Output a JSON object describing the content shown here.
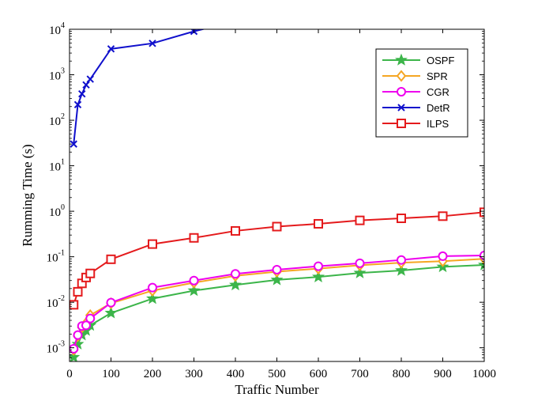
{
  "chart_data": {
    "type": "line",
    "xlabel": "Traffic Number",
    "ylabel": "Rumming Time (s)",
    "xlim": [
      0,
      1000
    ],
    "ylim": [
      0.0005,
      10000
    ],
    "yscale": "log",
    "grid": false,
    "legend_position": "top-right",
    "x_ticks": [
      "0",
      "100",
      "200",
      "300",
      "400",
      "500",
      "600",
      "700",
      "800",
      "900",
      "1000"
    ],
    "y_ticks": [
      {
        "base": "10",
        "exp": "-3"
      },
      {
        "base": "10",
        "exp": "-2"
      },
      {
        "base": "10",
        "exp": "-1"
      },
      {
        "base": "10",
        "exp": "0"
      },
      {
        "base": "10",
        "exp": "1"
      },
      {
        "base": "10",
        "exp": "2"
      },
      {
        "base": "10",
        "exp": "3"
      },
      {
        "base": "10",
        "exp": "4"
      }
    ],
    "series": [
      {
        "name": "OSPF",
        "color": "#3cb54a",
        "marker": "star",
        "x": [
          10,
          20,
          30,
          40,
          50,
          100,
          200,
          300,
          400,
          500,
          600,
          700,
          800,
          900,
          1000
        ],
        "y": [
          0.00062,
          0.0012,
          0.0019,
          0.0024,
          0.0031,
          0.0058,
          0.012,
          0.018,
          0.024,
          0.031,
          0.036,
          0.044,
          0.05,
          0.06,
          0.066
        ]
      },
      {
        "name": "SPR",
        "color": "#f5a623",
        "marker": "diamond",
        "x": [
          10,
          20,
          30,
          40,
          50,
          100,
          200,
          300,
          400,
          500,
          600,
          700,
          800,
          900,
          1000
        ],
        "y": [
          0.0009,
          0.0018,
          0.0028,
          0.0035,
          0.0052,
          0.0095,
          0.018,
          0.027,
          0.038,
          0.047,
          0.055,
          0.065,
          0.074,
          0.08,
          0.09
        ]
      },
      {
        "name": "CGR",
        "color": "#ee00ee",
        "marker": "circle",
        "x": [
          10,
          20,
          30,
          40,
          50,
          100,
          200,
          300,
          400,
          500,
          600,
          700,
          800,
          900,
          1000
        ],
        "y": [
          0.00095,
          0.0019,
          0.003,
          0.0031,
          0.0044,
          0.0098,
          0.021,
          0.03,
          0.042,
          0.052,
          0.062,
          0.072,
          0.085,
          0.103,
          0.107
        ]
      },
      {
        "name": "DetR",
        "color": "#1010cc",
        "marker": "x",
        "x": [
          10,
          20,
          30,
          40,
          50,
          100,
          200,
          300,
          330
        ],
        "y": [
          30,
          220,
          380,
          600,
          800,
          3700,
          4900,
          9000,
          10500
        ]
      },
      {
        "name": "ILPS",
        "color": "#e41a1c",
        "marker": "square",
        "x": [
          10,
          20,
          30,
          40,
          50,
          100,
          200,
          300,
          400,
          500,
          600,
          700,
          800,
          900,
          1000
        ],
        "y": [
          0.0088,
          0.017,
          0.026,
          0.035,
          0.043,
          0.088,
          0.19,
          0.26,
          0.37,
          0.46,
          0.53,
          0.63,
          0.7,
          0.78,
          0.95
        ]
      }
    ]
  }
}
